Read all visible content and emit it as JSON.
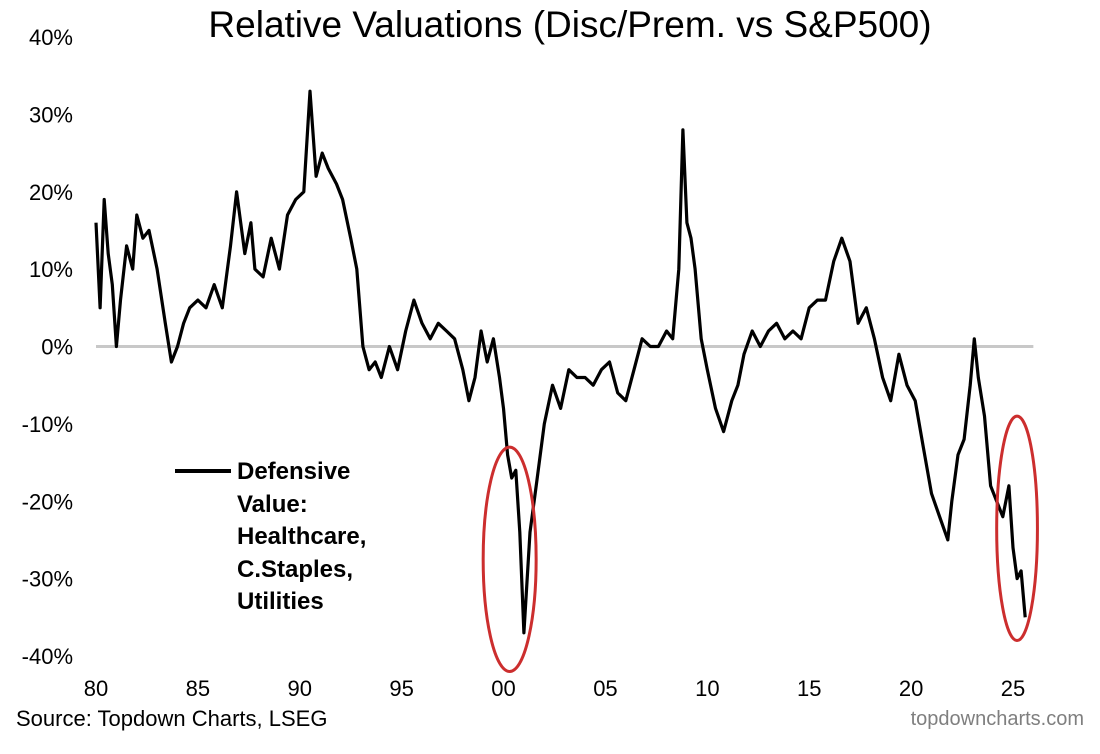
{
  "chart_data": {
    "type": "line",
    "title": "Relative Valuations (Disc/Prem. vs S&P500)",
    "xlabel": "",
    "ylabel": "",
    "x_range": [
      1980,
      2027.7
    ],
    "ylim": [
      -40,
      40
    ],
    "x_tick_values": [
      1980,
      1985,
      1990,
      1995,
      2000,
      2005,
      2010,
      2015,
      2020,
      2025
    ],
    "x_tick_labels": [
      "80",
      "85",
      "90",
      "95",
      "00",
      "05",
      "10",
      "15",
      "20",
      "25"
    ],
    "y_tick_values": [
      40,
      30,
      20,
      10,
      0,
      -10,
      -20,
      -30,
      -40
    ],
    "y_tick_labels": [
      "40%",
      "30%",
      "20%",
      "10%",
      "0%",
      "-10%",
      "-20%",
      "-30%",
      "-40%"
    ],
    "grid": false,
    "reference_line": 0,
    "legend_placement": "lower-left",
    "series": [
      {
        "name": "Defensive Value: Healthcare, C.Staples, Utilities",
        "color": "#000000",
        "x": [
          1980.0,
          1980.2,
          1980.4,
          1980.6,
          1980.8,
          1981.0,
          1981.2,
          1981.5,
          1981.8,
          1982.0,
          1982.3,
          1982.6,
          1983.0,
          1983.4,
          1983.7,
          1984.0,
          1984.3,
          1984.6,
          1985.0,
          1985.4,
          1985.8,
          1986.2,
          1986.6,
          1986.9,
          1987.3,
          1987.6,
          1987.8,
          1988.2,
          1988.6,
          1989.0,
          1989.4,
          1989.8,
          1990.2,
          1990.5,
          1990.8,
          1991.1,
          1991.4,
          1991.8,
          1992.1,
          1992.5,
          1992.8,
          1993.1,
          1993.4,
          1993.7,
          1994.0,
          1994.4,
          1994.8,
          1995.2,
          1995.6,
          1996.0,
          1996.4,
          1996.8,
          1997.2,
          1997.6,
          1998.0,
          1998.3,
          1998.6,
          1998.9,
          1999.2,
          1999.5,
          1999.8,
          2000.0,
          2000.2,
          2000.4,
          2000.6,
          2000.8,
          2001.0,
          2001.3,
          2001.6,
          2002.0,
          2002.4,
          2002.8,
          2003.2,
          2003.6,
          2004.0,
          2004.4,
          2004.8,
          2005.2,
          2005.6,
          2006.0,
          2006.4,
          2006.8,
          2007.2,
          2007.6,
          2008.0,
          2008.3,
          2008.6,
          2008.8,
          2009.0,
          2009.2,
          2009.4,
          2009.7,
          2010.0,
          2010.4,
          2010.8,
          2011.2,
          2011.5,
          2011.8,
          2012.2,
          2012.6,
          2013.0,
          2013.4,
          2013.8,
          2014.2,
          2014.6,
          2015.0,
          2015.4,
          2015.8,
          2016.2,
          2016.6,
          2017.0,
          2017.4,
          2017.8,
          2018.2,
          2018.6,
          2019.0,
          2019.4,
          2019.8,
          2020.2,
          2020.6,
          2021.0,
          2021.4,
          2021.8,
          2022.0,
          2022.3,
          2022.6,
          2022.9,
          2023.1,
          2023.3,
          2023.6,
          2023.9,
          2024.2,
          2024.5,
          2024.8,
          2025.0,
          2025.2,
          2025.4,
          2025.6
        ],
        "values": [
          16,
          5,
          19,
          12,
          8,
          0,
          6,
          13,
          10,
          17,
          14,
          15,
          10,
          3,
          -2,
          0,
          3,
          5,
          6,
          5,
          8,
          5,
          13,
          20,
          12,
          16,
          10,
          9,
          14,
          10,
          17,
          19,
          20,
          33,
          22,
          25,
          23,
          21,
          19,
          14,
          10,
          0,
          -3,
          -2,
          -4,
          0,
          -3,
          2,
          6,
          3,
          1,
          3,
          2,
          1,
          -3,
          -7,
          -4,
          2,
          -2,
          1,
          -4,
          -8,
          -14,
          -17,
          -16,
          -24,
          -37,
          -24,
          -18,
          -10,
          -5,
          -8,
          -3,
          -4,
          -4,
          -5,
          -3,
          -2,
          -6,
          -7,
          -3,
          1,
          0,
          0,
          2,
          1,
          10,
          28,
          16,
          14,
          10,
          1,
          -3,
          -8,
          -11,
          -7,
          -5,
          -1,
          2,
          0,
          2,
          3,
          1,
          2,
          1,
          5,
          6,
          6,
          11,
          14,
          11,
          3,
          5,
          1,
          -4,
          -7,
          -1,
          -5,
          -7,
          -13,
          -19,
          -22,
          -25,
          -20,
          -14,
          -12,
          -5,
          1,
          -4,
          -9,
          -18,
          -20,
          -22,
          -18,
          -26,
          -30,
          -29,
          -35
        ]
      }
    ],
    "annotations": [
      {
        "type": "ellipse",
        "color": "#cc2e2e",
        "center": [
          2000.3,
          -27.5
        ],
        "radius_x": 1.3,
        "radius_y": 14.5
      },
      {
        "type": "ellipse",
        "color": "#cc2e2e",
        "center": [
          2025.2,
          -23.5
        ],
        "radius_x": 1.0,
        "radius_y": 14.5
      }
    ]
  },
  "legend": {
    "text": "Defensive\nValue:\nHealthcare,\nC.Staples,\nUtilities"
  },
  "footer": {
    "source": "Source: Topdown Charts, LSEG",
    "brand": "topdowncharts.com"
  }
}
